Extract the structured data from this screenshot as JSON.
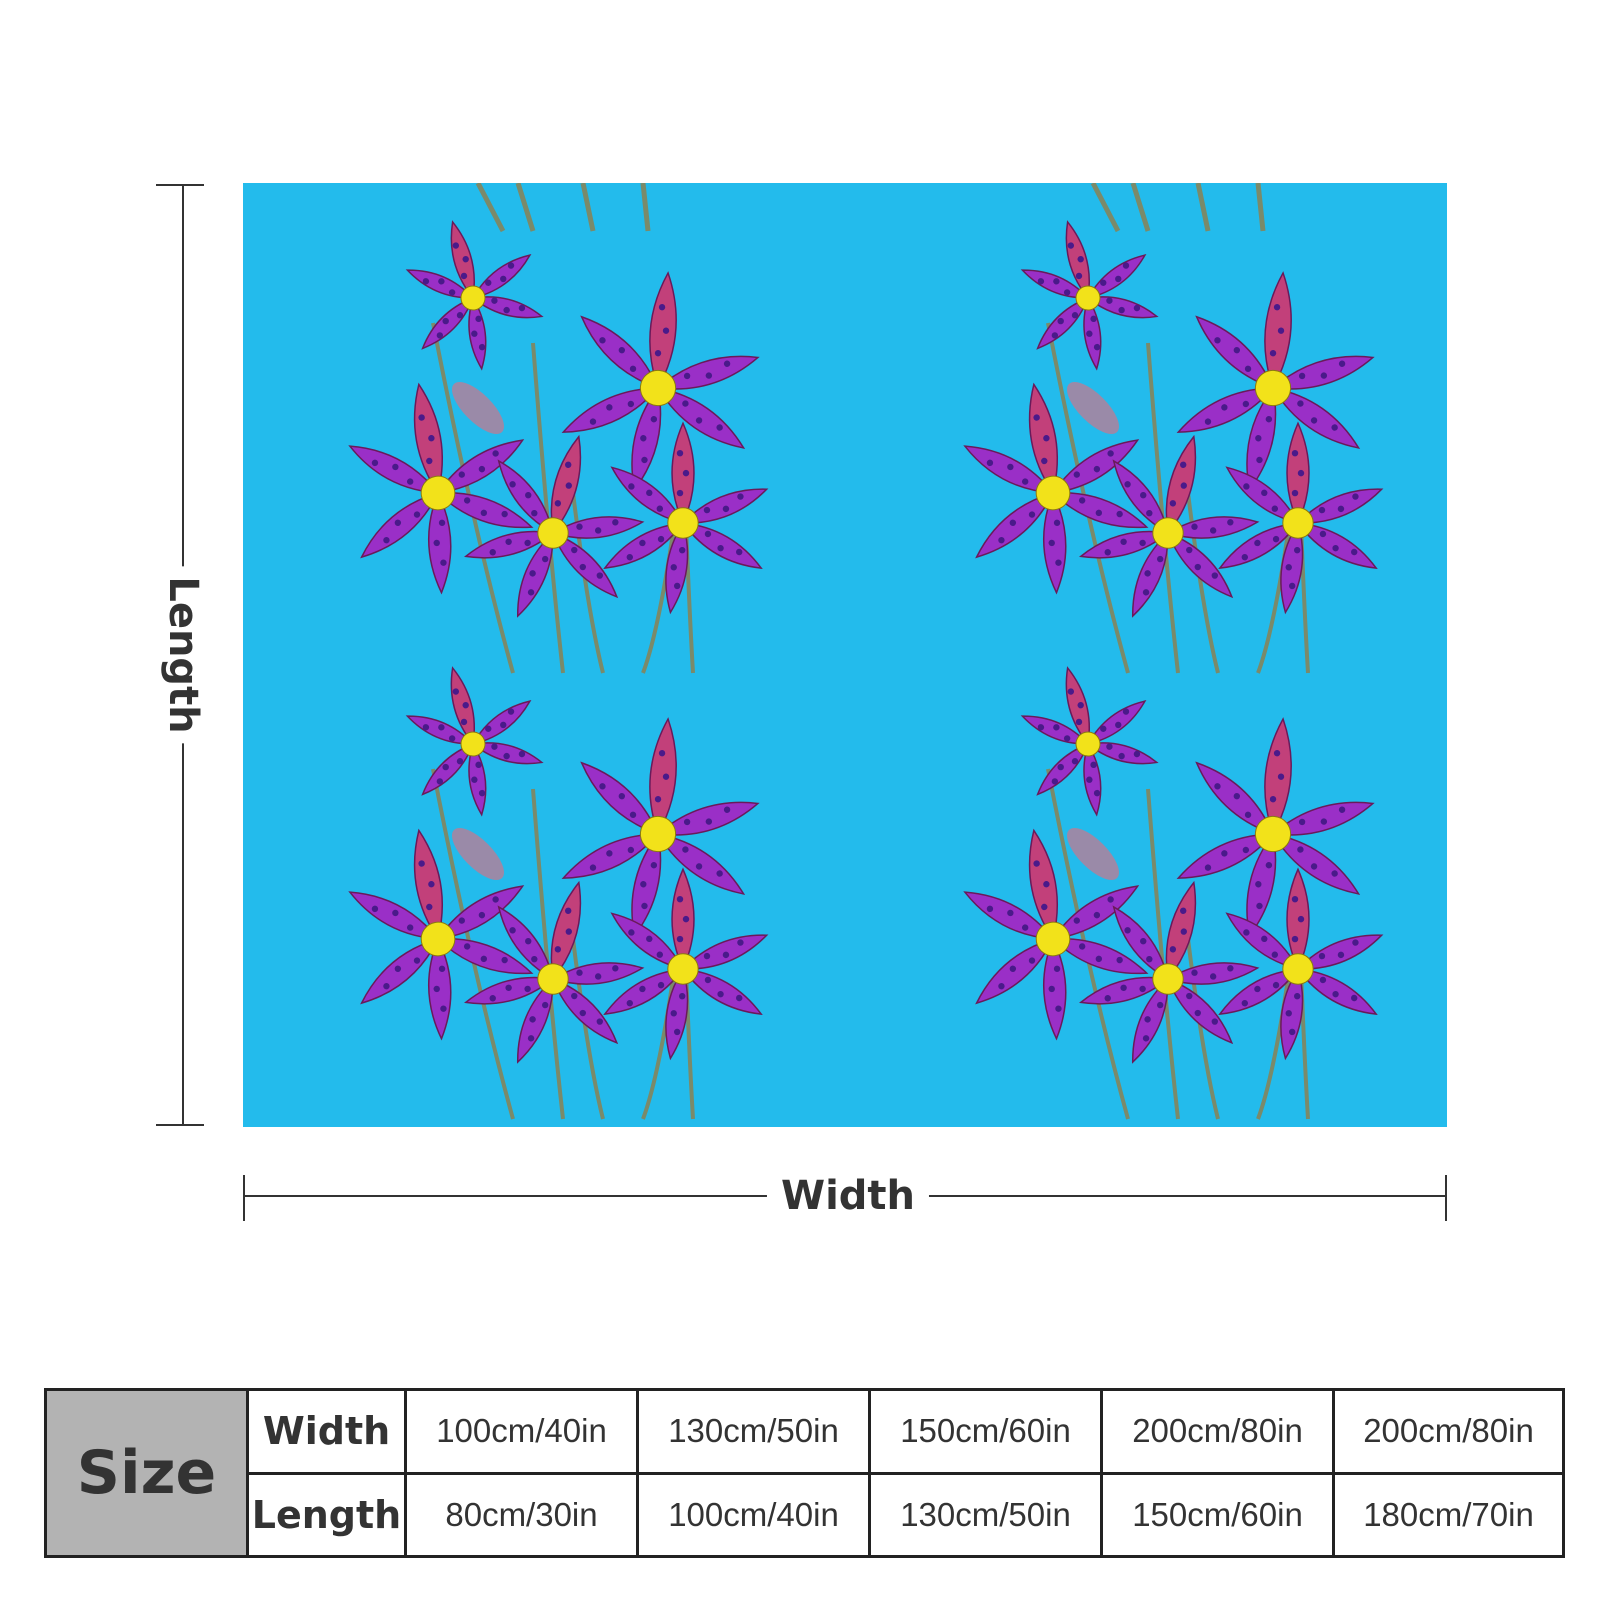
{
  "dimensions": {
    "length_label": "Length",
    "width_label": "Width"
  },
  "artwork": {
    "background_color": "#23bbec",
    "petal_color": "#9a2fc7",
    "petal_accent_color": "#c2407a",
    "center_color": "#f2e21a",
    "stem_color": "#7a8a6a",
    "motif_icon": "orchid-flower-icon"
  },
  "size_table": {
    "size_label": "Size",
    "rows": [
      {
        "label": "Width",
        "values": [
          "100cm/40in",
          "130cm/50in",
          "150cm/60in",
          "200cm/80in",
          "200cm/80in"
        ]
      },
      {
        "label": "Length",
        "values": [
          "80cm/30in",
          "100cm/40in",
          "130cm/50in",
          "150cm/60in",
          "180cm/70in"
        ]
      }
    ]
  }
}
